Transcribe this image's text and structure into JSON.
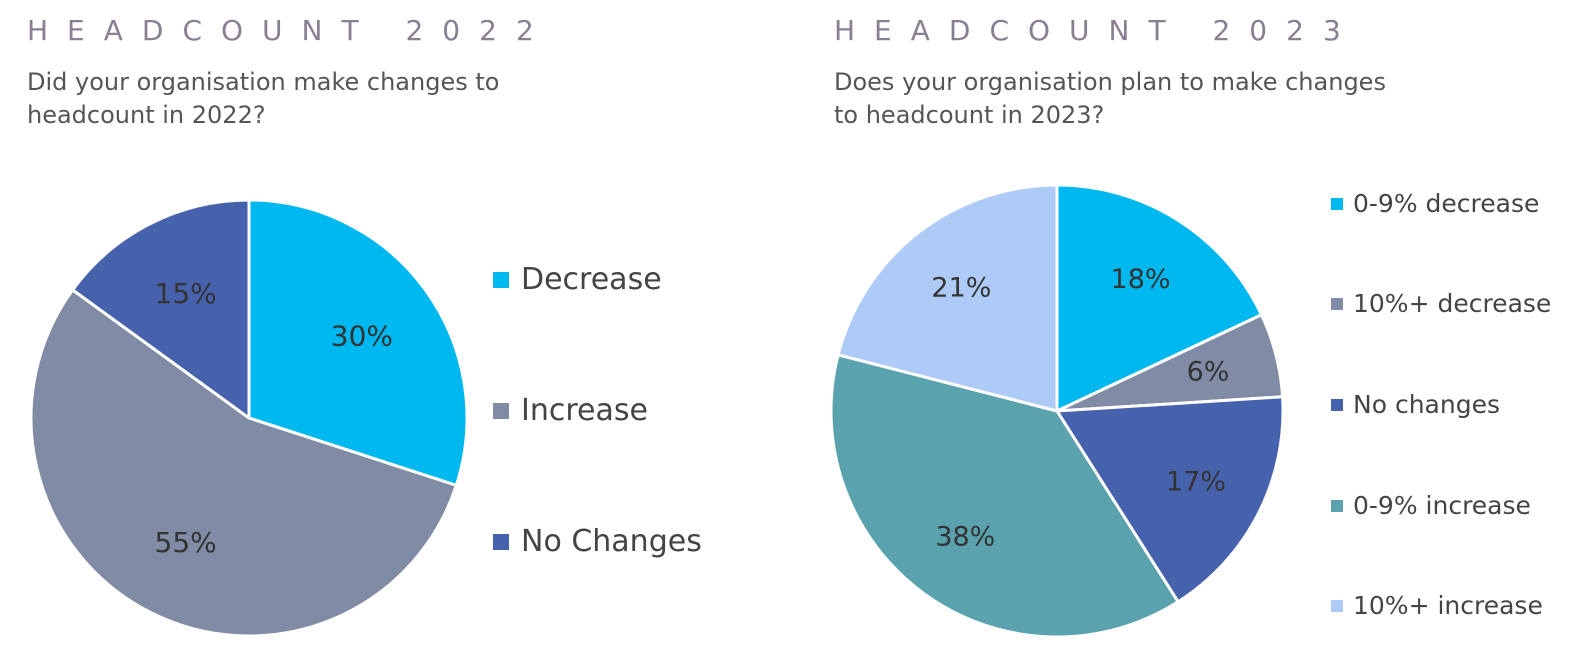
{
  "left": {
    "heading": "HEADCOUNT 2022",
    "question": "Did your organisation make changes to headcount in 2022?"
  },
  "right": {
    "heading": "HEADCOUNT 2023",
    "question": "Does your organisation plan to make changes to headcount in 2023?"
  },
  "chart_data": [
    {
      "type": "pie",
      "title": "",
      "categories": [
        "Decrease",
        "Increase",
        "No Changes"
      ],
      "values": [
        30,
        55,
        15
      ],
      "labels": [
        "30%",
        "55%",
        "15%"
      ],
      "colors": [
        "#00b8f0",
        "#808ca5",
        "#4762ad"
      ],
      "start_angle": "12 o'clock, clockwise",
      "legend_position": "right"
    },
    {
      "type": "pie",
      "title": "",
      "categories": [
        "0-9% decrease",
        "10%+ decrease",
        "No changes",
        "0-9% increase",
        "10%+ increase"
      ],
      "values": [
        18,
        6,
        17,
        38,
        21
      ],
      "labels": [
        "18%",
        "6%",
        "17%",
        "38%",
        "21%"
      ],
      "colors": [
        "#00b8f0",
        "#808ca5",
        "#4762ad",
        "#5aa2ad",
        "#aecbf8"
      ],
      "start_angle": "12 o'clock, clockwise",
      "legend_position": "right"
    }
  ]
}
